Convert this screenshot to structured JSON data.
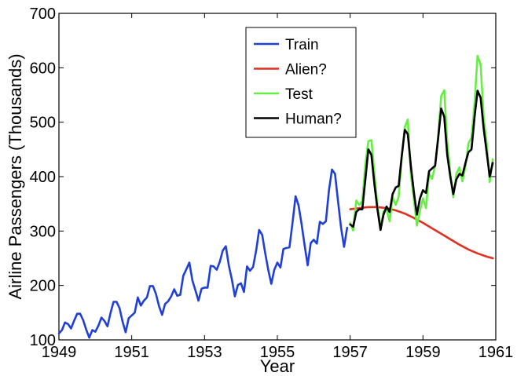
{
  "chart_data": {
    "type": "line",
    "title": "",
    "xlabel": "Year",
    "ylabel": "Airline Passengers (Thousands)",
    "xlim": [
      1949,
      1961
    ],
    "ylim": [
      100,
      700
    ],
    "xticks": [
      1949,
      1951,
      1953,
      1955,
      1957,
      1959,
      1961
    ],
    "yticks": [
      100,
      200,
      300,
      400,
      500,
      600,
      700
    ],
    "x_tick_labels": [
      "1949",
      "1951",
      "1953",
      "1955",
      "1957",
      "1959",
      "1961"
    ],
    "y_tick_labels": [
      "100",
      "200",
      "300",
      "400",
      "500",
      "600",
      "700"
    ],
    "grid": false,
    "legend_position": "top-center",
    "series": [
      {
        "name": "Train",
        "color": "#1f3fd6",
        "x_start": 1949.0,
        "x_step": 0.083333,
        "values": [
          112,
          118,
          132,
          129,
          121,
          135,
          148,
          148,
          136,
          119,
          104,
          118,
          115,
          126,
          141,
          135,
          125,
          149,
          170,
          170,
          158,
          133,
          114,
          140,
          145,
          150,
          178,
          163,
          172,
          178,
          199,
          199,
          184,
          162,
          146,
          166,
          171,
          180,
          193,
          181,
          183,
          218,
          230,
          242,
          209,
          191,
          172,
          194,
          196,
          196,
          236,
          235,
          229,
          243,
          264,
          272,
          237,
          211,
          180,
          201,
          204,
          188,
          235,
          227,
          234,
          264,
          302,
          293,
          259,
          229,
          203,
          229,
          242,
          233,
          267,
          269,
          270,
          315,
          364,
          347,
          312,
          274,
          237,
          278,
          284,
          277,
          317,
          313,
          318,
          374,
          413,
          405,
          355,
          306,
          271,
          306
        ]
      },
      {
        "name": "Alien?",
        "color": "#e03020",
        "x": [
          1957.0,
          1957.25,
          1957.5,
          1957.75,
          1958.0,
          1958.25,
          1958.5,
          1958.75,
          1959.0,
          1959.25,
          1959.5,
          1959.75,
          1960.0,
          1960.25,
          1960.5,
          1960.75,
          1960.92
        ],
        "values": [
          340,
          342,
          344,
          344,
          342,
          338,
          332,
          324,
          315,
          305,
          295,
          285,
          275,
          266,
          259,
          253,
          250
        ]
      },
      {
        "name": "Test",
        "color": "#66ee44",
        "x_start": 1957.0,
        "x_step": 0.083333,
        "values": [
          315,
          301,
          356,
          348,
          355,
          422,
          465,
          467,
          404,
          347,
          305,
          336,
          340,
          318,
          362,
          348,
          363,
          435,
          491,
          505,
          404,
          359,
          310,
          337,
          360,
          342,
          406,
          396,
          420,
          472,
          548,
          559,
          463,
          407,
          362,
          405,
          417,
          391,
          419,
          461,
          472,
          535,
          622,
          606,
          508,
          461,
          390,
          432
        ]
      },
      {
        "name": "Human?",
        "color": "#000000",
        "x_start": 1957.0,
        "x_step": 0.083333,
        "values": [
          312,
          308,
          335,
          340,
          340,
          395,
          450,
          440,
          385,
          340,
          302,
          330,
          345,
          335,
          368,
          380,
          383,
          438,
          486,
          478,
          420,
          372,
          330,
          360,
          375,
          370,
          410,
          415,
          420,
          470,
          525,
          510,
          440,
          400,
          368,
          395,
          405,
          402,
          425,
          445,
          450,
          510,
          558,
          545,
          488,
          445,
          400,
          425
        ]
      }
    ]
  }
}
